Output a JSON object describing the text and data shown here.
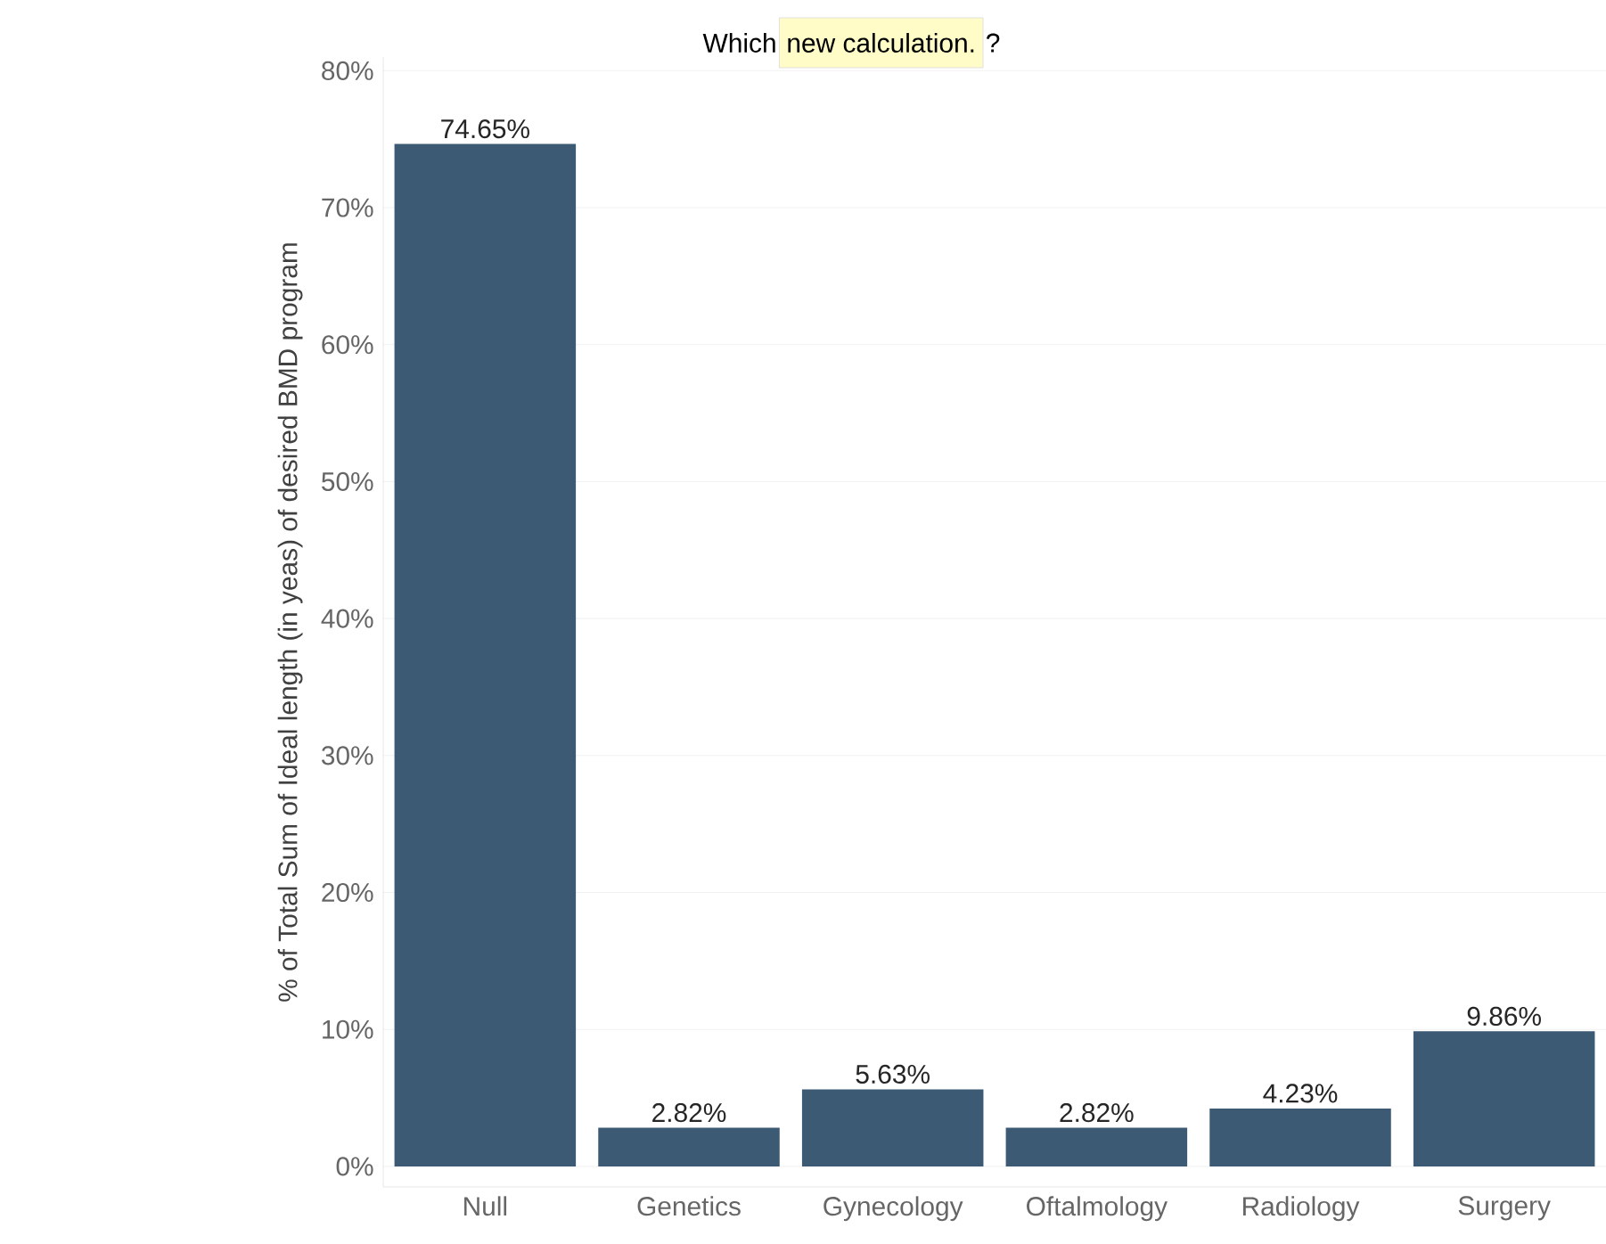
{
  "chart_data": {
    "type": "bar",
    "title": "Which",
    "annotations": [
      "new calculation.",
      "?"
    ],
    "ylabel": "% of Total Sum of Ideal length (in yeas) of desired BMD program",
    "categories": [
      "Null",
      "Genetics",
      "Gynecology",
      "Oftalmology",
      "Radiology",
      "Surgery"
    ],
    "values": [
      74.65,
      2.82,
      5.63,
      2.82,
      4.23,
      9.86
    ],
    "value_labels": [
      "74.65%",
      "2.82%",
      "5.63%",
      "2.82%",
      "4.23%",
      "9.86%"
    ],
    "color": "#3d5a75",
    "ylim": [
      -1.5,
      81
    ],
    "yticks": [
      {
        "value": 0,
        "label": "0%"
      },
      {
        "value": 10,
        "label": "10%"
      },
      {
        "value": 20,
        "label": "20%"
      },
      {
        "value": 30,
        "label": "30%"
      },
      {
        "value": 40,
        "label": "40%"
      },
      {
        "value": 50,
        "label": "50%"
      },
      {
        "value": 60,
        "label": "60%"
      },
      {
        "value": 70,
        "label": "70%"
      },
      {
        "value": 80,
        "label": "80%"
      }
    ],
    "grid": "y"
  }
}
